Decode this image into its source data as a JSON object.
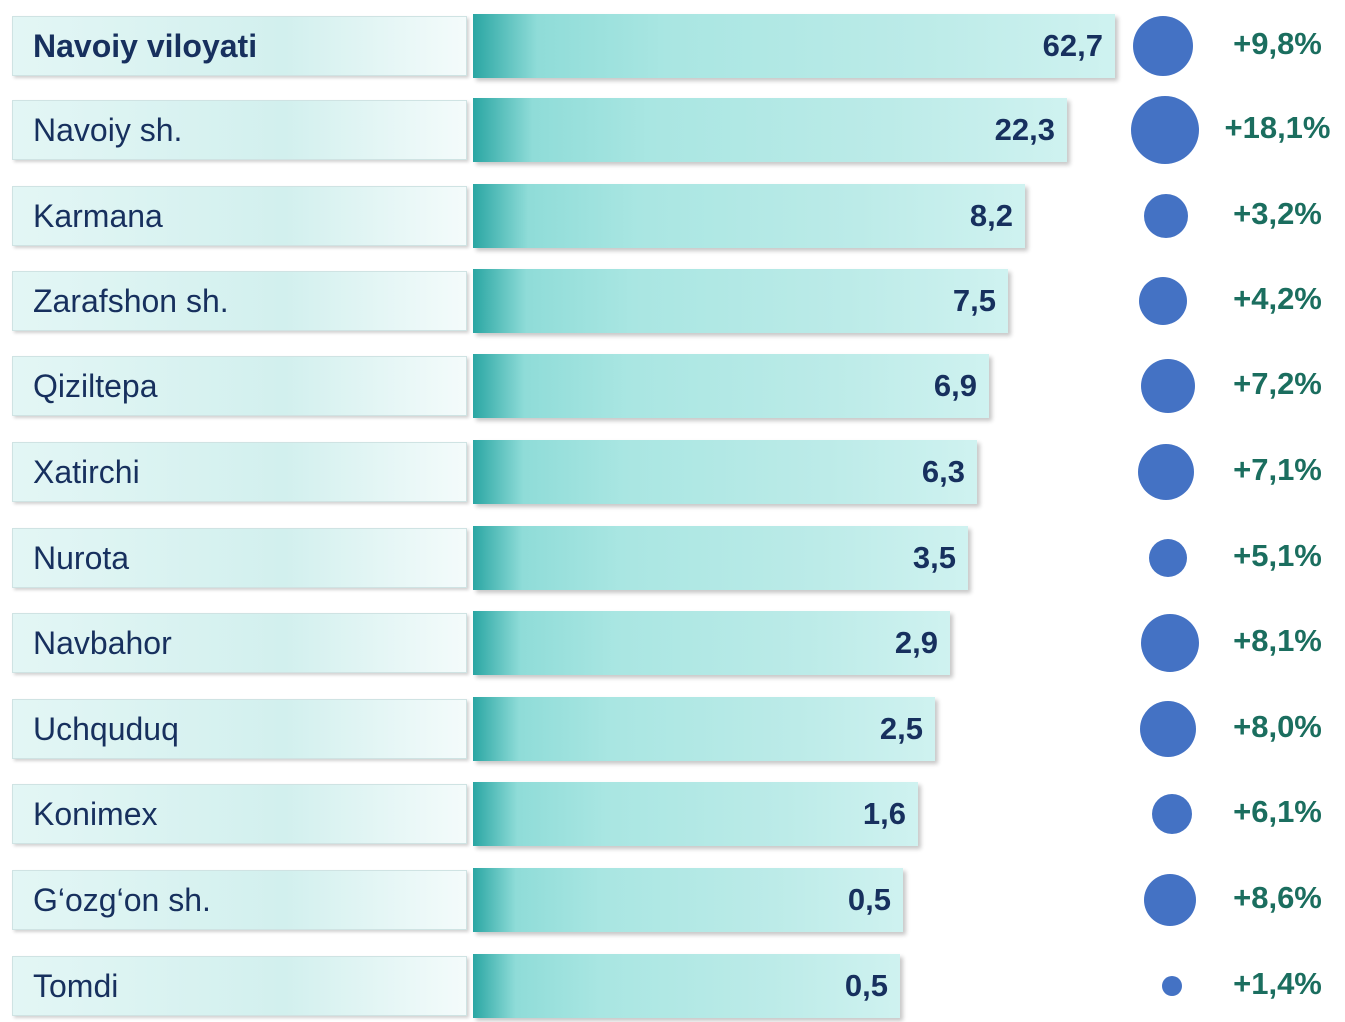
{
  "rows": [
    {
      "name": "Navoiy viloyati",
      "value": "62,7",
      "change": "+9,8%"
    },
    {
      "name": "Navoiy sh.",
      "value": "22,3",
      "change": "+18,1%"
    },
    {
      "name": "Karmana",
      "value": "8,2",
      "change": "+3,2%"
    },
    {
      "name": "Zarafshon sh.",
      "value": "7,5",
      "change": "+4,2%"
    },
    {
      "name": "Qiziltepa",
      "value": "6,9",
      "change": "+7,2%"
    },
    {
      "name": "Xatirchi",
      "value": "6,3",
      "change": "+7,1%"
    },
    {
      "name": "Nurota",
      "value": "3,5",
      "change": "+5,1%"
    },
    {
      "name": "Navbahor",
      "value": "2,9",
      "change": "+8,1%"
    },
    {
      "name": "Uchquduq",
      "value": "2,5",
      "change": "+8,0%"
    },
    {
      "name": "Konimex",
      "value": "1,6",
      "change": "+6,1%"
    },
    {
      "name": "G‘ozg‘on sh.",
      "value": "0,5",
      "change": "+8,6%"
    },
    {
      "name": "Tomdi",
      "value": "0,5",
      "change": "+1,4%"
    }
  ]
}
